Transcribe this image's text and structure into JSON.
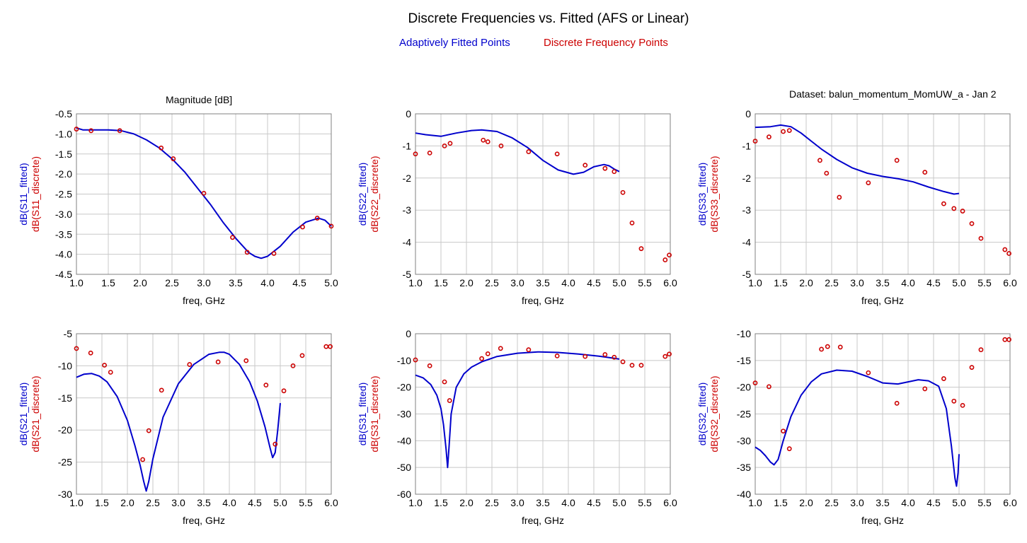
{
  "header": {
    "title": "Discrete Frequencies vs. Fitted (AFS or Linear)",
    "legend_fitted": "Adaptively Fitted Points",
    "legend_discrete": "Discrete Frequency Points",
    "plot_header": "Magnitude [dB]",
    "dataset": "Dataset: balun_momentum_MomUW_a - Jan 2"
  },
  "colors": {
    "fitted": "#0000cc",
    "discrete": "#cc0000",
    "grid": "#c8c8c8",
    "axis": "#808080"
  },
  "chart_data": [
    {
      "id": "s11",
      "type": "line",
      "xlabel": "freq, GHz",
      "ylabel_fitted": "dB(S11_fitted)",
      "ylabel_discrete": "dB(S11_discrete)",
      "xlim": [
        1.0,
        5.0
      ],
      "ylim": [
        -4.5,
        -0.5
      ],
      "xticks": [
        "1.0",
        "1.5",
        "2.0",
        "2.5",
        "3.0",
        "3.5",
        "4.0",
        "4.5",
        "5.0"
      ],
      "yticks": [
        "-0.5",
        "-1.0",
        "-1.5",
        "-2.0",
        "-2.5",
        "-3.0",
        "-3.5",
        "-4.0",
        "-4.5"
      ],
      "fitted": {
        "x": [
          1.0,
          1.1,
          1.3,
          1.5,
          1.7,
          1.9,
          2.1,
          2.3,
          2.5,
          2.7,
          2.9,
          3.1,
          3.3,
          3.5,
          3.7,
          3.8,
          3.9,
          4.0,
          4.2,
          4.4,
          4.6,
          4.8,
          4.9,
          5.0
        ],
        "y": [
          -0.85,
          -0.9,
          -0.9,
          -0.9,
          -0.92,
          -1.0,
          -1.15,
          -1.35,
          -1.62,
          -1.95,
          -2.35,
          -2.75,
          -3.2,
          -3.6,
          -3.95,
          -4.05,
          -4.1,
          -4.05,
          -3.8,
          -3.45,
          -3.2,
          -3.1,
          -3.15,
          -3.3
        ]
      },
      "discrete": {
        "x": [
          1.0,
          1.23,
          1.68,
          2.33,
          2.52,
          3.0,
          3.45,
          3.68,
          4.1,
          4.55,
          4.78,
          5.0
        ],
        "y": [
          -0.88,
          -0.92,
          -0.92,
          -1.35,
          -1.62,
          -2.48,
          -3.58,
          -3.95,
          -3.98,
          -3.32,
          -3.1,
          -3.3
        ]
      }
    },
    {
      "id": "s22",
      "type": "line",
      "xlabel": "freq, GHz",
      "ylabel_fitted": "dB(S22_fitted)",
      "ylabel_discrete": "dB(S22_discrete)",
      "xlim": [
        1.0,
        6.0
      ],
      "ylim": [
        -5,
        0
      ],
      "xticks": [
        "1.0",
        "1.5",
        "2.0",
        "2.5",
        "3.0",
        "3.5",
        "4.0",
        "4.5",
        "5.0",
        "5.5",
        "6.0"
      ],
      "yticks": [
        "0",
        "-1",
        "-2",
        "-3",
        "-4",
        "-5"
      ],
      "fitted": {
        "x": [
          1.0,
          1.2,
          1.5,
          1.8,
          2.1,
          2.3,
          2.6,
          2.9,
          3.2,
          3.5,
          3.8,
          4.1,
          4.3,
          4.5,
          4.7,
          4.8,
          4.9,
          5.0
        ],
        "y": [
          -0.6,
          -0.65,
          -0.7,
          -0.6,
          -0.52,
          -0.5,
          -0.55,
          -0.75,
          -1.05,
          -1.45,
          -1.75,
          -1.88,
          -1.82,
          -1.65,
          -1.58,
          -1.62,
          -1.72,
          -1.8
        ]
      },
      "discrete": {
        "x": [
          1.0,
          1.28,
          1.57,
          1.68,
          2.33,
          2.42,
          2.68,
          3.22,
          3.78,
          4.33,
          4.72,
          4.9,
          5.07,
          5.25,
          5.43,
          5.9,
          5.98
        ],
        "y": [
          -1.25,
          -1.22,
          -1.0,
          -0.92,
          -0.82,
          -0.87,
          -1.0,
          -1.18,
          -1.25,
          -1.6,
          -1.7,
          -1.8,
          -2.45,
          -3.4,
          -4.2,
          -4.55,
          -4.4
        ]
      }
    },
    {
      "id": "s33",
      "type": "line",
      "xlabel": "freq, GHz",
      "ylabel_fitted": "dB(S33_fitted)",
      "ylabel_discrete": "dB(S33_discrete)",
      "xlim": [
        1.0,
        6.0
      ],
      "ylim": [
        -5,
        0
      ],
      "xticks": [
        "1.0",
        "1.5",
        "2.0",
        "2.5",
        "3.0",
        "3.5",
        "4.0",
        "4.5",
        "5.0",
        "5.5",
        "6.0"
      ],
      "yticks": [
        "0",
        "-1",
        "-2",
        "-3",
        "-4",
        "-5"
      ],
      "fitted": {
        "x": [
          1.0,
          1.3,
          1.5,
          1.7,
          1.9,
          2.1,
          2.3,
          2.6,
          2.9,
          3.2,
          3.5,
          3.8,
          4.1,
          4.4,
          4.7,
          4.9,
          5.0
        ],
        "y": [
          -0.42,
          -0.4,
          -0.35,
          -0.4,
          -0.6,
          -0.85,
          -1.1,
          -1.42,
          -1.68,
          -1.85,
          -1.95,
          -2.02,
          -2.12,
          -2.28,
          -2.42,
          -2.5,
          -2.48
        ]
      },
      "discrete": {
        "x": [
          1.0,
          1.27,
          1.55,
          1.67,
          2.27,
          2.4,
          2.65,
          3.22,
          3.78,
          4.33,
          4.7,
          4.9,
          5.07,
          5.25,
          5.43,
          5.9,
          5.98
        ],
        "y": [
          -0.85,
          -0.72,
          -0.55,
          -0.52,
          -1.45,
          -1.85,
          -2.6,
          -2.15,
          -1.45,
          -1.82,
          -2.8,
          -2.95,
          -3.03,
          -3.42,
          -3.88,
          -4.23,
          -4.35
        ]
      }
    },
    {
      "id": "s21",
      "type": "line",
      "xlabel": "freq, GHz",
      "ylabel_fitted": "dB(S21_fitted)",
      "ylabel_discrete": "dB(S21_discrete)",
      "xlim": [
        1.0,
        6.0
      ],
      "ylim": [
        -30,
        -5
      ],
      "xticks": [
        "1.0",
        "1.5",
        "2.0",
        "2.5",
        "3.0",
        "3.5",
        "4.0",
        "4.5",
        "5.0",
        "5.5",
        "6.0"
      ],
      "yticks": [
        "-5",
        "-10",
        "-15",
        "-20",
        "-25",
        "-30"
      ],
      "fitted": {
        "x": [
          1.0,
          1.15,
          1.3,
          1.45,
          1.6,
          1.8,
          2.0,
          2.15,
          2.25,
          2.32,
          2.37,
          2.42,
          2.5,
          2.7,
          3.0,
          3.3,
          3.6,
          3.8,
          3.9,
          4.0,
          4.2,
          4.4,
          4.55,
          4.7,
          4.8,
          4.85,
          4.9,
          4.95,
          5.0
        ],
        "y": [
          -11.8,
          -11.3,
          -11.2,
          -11.6,
          -12.5,
          -14.8,
          -18.5,
          -22.5,
          -25.5,
          -28.0,
          -29.5,
          -28.0,
          -24.5,
          -18.0,
          -12.8,
          -9.8,
          -8.2,
          -7.9,
          -7.9,
          -8.2,
          -9.8,
          -12.5,
          -15.5,
          -19.5,
          -22.8,
          -24.3,
          -23.5,
          -20.0,
          -15.8
        ]
      },
      "discrete": {
        "x": [
          1.0,
          1.28,
          1.55,
          1.67,
          2.3,
          2.42,
          2.67,
          3.22,
          3.78,
          4.33,
          4.72,
          4.9,
          5.07,
          5.25,
          5.43,
          5.9,
          5.98
        ],
        "y": [
          -7.3,
          -8.0,
          -9.9,
          -11.0,
          -24.6,
          -20.1,
          -13.8,
          -9.8,
          -9.4,
          -9.2,
          -13.0,
          -22.2,
          -13.9,
          -10.0,
          -8.4,
          -7.0,
          -7.0
        ]
      }
    },
    {
      "id": "s31",
      "type": "line",
      "xlabel": "freq, GHz",
      "ylabel_fitted": "dB(S31_fitted)",
      "ylabel_discrete": "dB(S31_discrete)",
      "xlim": [
        1.0,
        6.0
      ],
      "ylim": [
        -60,
        0
      ],
      "xticks": [
        "1.0",
        "1.5",
        "2.0",
        "2.5",
        "3.0",
        "3.5",
        "4.0",
        "4.5",
        "5.0",
        "5.5",
        "6.0"
      ],
      "yticks": [
        "0",
        "-10",
        "-20",
        "-30",
        "-40",
        "-50",
        "-60"
      ],
      "fitted": {
        "x": [
          1.0,
          1.15,
          1.3,
          1.42,
          1.5,
          1.55,
          1.6,
          1.63,
          1.66,
          1.7,
          1.8,
          1.95,
          2.1,
          2.3,
          2.6,
          3.0,
          3.4,
          3.8,
          4.2,
          4.6,
          4.9,
          5.0
        ],
        "y": [
          -15.5,
          -16.5,
          -19.0,
          -23.0,
          -28.0,
          -34.0,
          -43.0,
          -50.0,
          -42.0,
          -30.0,
          -20.0,
          -15.0,
          -12.5,
          -10.5,
          -8.5,
          -7.3,
          -6.8,
          -7.0,
          -7.6,
          -8.4,
          -9.2,
          -9.5
        ]
      },
      "discrete": {
        "x": [
          1.0,
          1.28,
          1.57,
          1.67,
          2.3,
          2.42,
          2.67,
          3.22,
          3.78,
          4.33,
          4.72,
          4.9,
          5.07,
          5.25,
          5.43,
          5.9,
          5.98
        ],
        "y": [
          -9.8,
          -12.0,
          -18.0,
          -25.0,
          -9.3,
          -7.5,
          -5.5,
          -6.0,
          -8.3,
          -8.5,
          -7.8,
          -8.8,
          -10.5,
          -11.8,
          -11.8,
          -8.5,
          -7.6
        ]
      }
    },
    {
      "id": "s32",
      "type": "line",
      "xlabel": "freq, GHz",
      "ylabel_fitted": "dB(S32_fitted)",
      "ylabel_discrete": "dB(S32_discrete)",
      "xlim": [
        1.0,
        6.0
      ],
      "ylim": [
        -40,
        -10
      ],
      "xticks": [
        "1.0",
        "1.5",
        "2.0",
        "2.5",
        "3.0",
        "3.5",
        "4.0",
        "4.5",
        "5.0",
        "5.5",
        "6.0"
      ],
      "yticks": [
        "-10",
        "-15",
        "-20",
        "-25",
        "-30",
        "-35",
        "-40"
      ],
      "fitted": {
        "x": [
          1.0,
          1.1,
          1.2,
          1.3,
          1.37,
          1.45,
          1.55,
          1.7,
          1.9,
          2.1,
          2.3,
          2.6,
          2.9,
          3.2,
          3.5,
          3.8,
          4.0,
          4.2,
          4.4,
          4.6,
          4.75,
          4.85,
          4.92,
          4.95,
          4.98,
          5.0
        ],
        "y": [
          -31.2,
          -31.8,
          -32.8,
          -34.0,
          -34.5,
          -33.5,
          -30.0,
          -25.5,
          -21.5,
          -19.0,
          -17.5,
          -16.8,
          -17.0,
          -18.0,
          -19.2,
          -19.4,
          -19.0,
          -18.6,
          -18.8,
          -19.8,
          -24.0,
          -31.0,
          -37.0,
          -38.5,
          -36.0,
          -32.5
        ]
      },
      "discrete": {
        "x": [
          1.0,
          1.27,
          1.55,
          1.67,
          2.3,
          2.42,
          2.67,
          3.22,
          3.78,
          4.33,
          4.7,
          4.9,
          5.07,
          5.25,
          5.43,
          5.9,
          5.98
        ],
        "y": [
          -19.2,
          -19.9,
          -28.2,
          -31.5,
          -12.9,
          -12.4,
          -12.5,
          -17.3,
          -23.0,
          -20.3,
          -18.4,
          -22.6,
          -23.4,
          -16.3,
          -13.0,
          -11.1,
          -11.1
        ]
      }
    }
  ]
}
